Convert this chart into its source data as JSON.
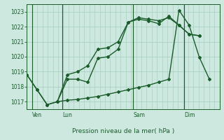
{
  "title": "Pression niveau de la mer( hPa )",
  "bg_color": "#cce8df",
  "grid_color": "#aacfc5",
  "line_color": "#1a5c2a",
  "ylim": [
    1016.5,
    1023.5
  ],
  "yticks": [
    1017,
    1018,
    1019,
    1020,
    1021,
    1022,
    1023
  ],
  "day_labels": [
    "Ven",
    "Lun",
    "Sam",
    "Dim"
  ],
  "day_positions": [
    0.5,
    3.5,
    10.5,
    15.5
  ],
  "xlim": [
    0,
    19
  ],
  "line1_x": [
    0,
    1,
    2,
    3,
    4,
    5,
    6,
    7,
    8,
    9,
    10,
    11,
    12,
    13,
    14,
    15,
    16,
    17
  ],
  "line1_y": [
    1018.8,
    1017.8,
    1016.8,
    1017.0,
    1018.5,
    1018.5,
    1018.3,
    1019.9,
    1020.0,
    1020.5,
    1022.3,
    1022.5,
    1022.4,
    1022.2,
    1022.7,
    1022.1,
    1021.5,
    1021.4
  ],
  "line2_x": [
    0,
    1,
    2,
    3,
    4,
    5,
    6,
    7,
    8,
    9,
    10,
    11,
    12,
    13,
    14,
    15,
    16,
    17
  ],
  "line2_y": [
    1018.8,
    1017.8,
    1016.8,
    1017.0,
    1018.8,
    1019.0,
    1019.4,
    1020.5,
    1020.6,
    1021.0,
    1022.3,
    1022.6,
    1022.5,
    1022.4,
    1022.6,
    1022.1,
    1021.5,
    1021.4
  ],
  "line3_x": [
    3,
    4,
    5,
    6,
    7,
    8,
    9,
    10,
    11,
    12,
    13,
    14,
    15,
    16,
    17,
    18
  ],
  "line3_y": [
    1017.0,
    1017.1,
    1017.15,
    1017.25,
    1017.35,
    1017.5,
    1017.65,
    1017.8,
    1017.95,
    1018.1,
    1018.3,
    1018.5,
    1023.1,
    1022.1,
    1019.97,
    1018.5
  ],
  "vlines": [
    0.5,
    3.5,
    10.5,
    15.5
  ],
  "num_vgrid": 38,
  "marker": "D",
  "marker_size": 2.0,
  "lw": 1.0
}
